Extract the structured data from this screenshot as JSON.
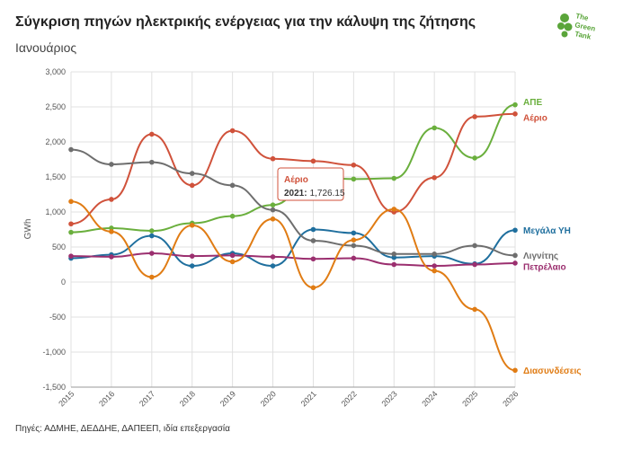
{
  "header": {
    "title": "Σύγκριση πηγών ηλεκτρικής ενέργειας για την κάλυψη της ζήτησης",
    "subtitle": "Ιανουάριος",
    "source": "Πηγές: ΑΔΜΗΕ, ΔΕΔΔΗΕ, ΔΑΠΕΕΠ, ιδία επεξεργασία"
  },
  "logo": {
    "line1": "The",
    "line2": "Green",
    "line3": "Tank",
    "color": "#5aa53a"
  },
  "tooltip": {
    "series": "Αέριο",
    "year": "2021:",
    "value": "1,726.15"
  },
  "chart_data": {
    "type": "line",
    "title": "Σύγκριση πηγών ηλεκτρικής ενέργειας για την κάλυψη της ζήτησης",
    "subtitle": "Ιανουάριος",
    "xlabel": "",
    "ylabel": "GWh",
    "ylim": [
      -1500,
      3000
    ],
    "y_ticks": [
      -1500,
      -1000,
      -500,
      0,
      500,
      1000,
      1500,
      2000,
      2500,
      3000
    ],
    "y_tick_labels": [
      "-1,500",
      "-1,000",
      "-500",
      "0",
      "500",
      "1,000",
      "1,500",
      "2,000",
      "2,500",
      "3,000"
    ],
    "x": [
      "2015",
      "2016",
      "2017",
      "2018",
      "2019",
      "2020",
      "2021",
      "2022",
      "2023",
      "2024",
      "2025",
      "2026"
    ],
    "series": [
      {
        "name": "ΑΠΕ",
        "color": "#6aaf3d",
        "values": [
          710,
          770,
          730,
          840,
          940,
          1100,
          1500,
          1470,
          1480,
          2200,
          1770,
          2530
        ]
      },
      {
        "name": "Αέριο",
        "color": "#d0523b",
        "values": [
          830,
          1180,
          2110,
          1380,
          2160,
          1760,
          1726.15,
          1670,
          1000,
          1490,
          2360,
          2400
        ]
      },
      {
        "name": "Μεγάλα ΥΗ",
        "color": "#1f6f9e",
        "values": [
          340,
          390,
          660,
          230,
          410,
          230,
          750,
          700,
          350,
          370,
          260,
          740
        ]
      },
      {
        "name": "Λιγνίτης",
        "color": "#6e6e6e",
        "values": [
          1890,
          1680,
          1710,
          1550,
          1380,
          1030,
          590,
          520,
          400,
          400,
          520,
          380
        ]
      },
      {
        "name": "Πετρέλαιο",
        "color": "#9b2f6f",
        "values": [
          370,
          360,
          410,
          370,
          380,
          360,
          330,
          340,
          250,
          230,
          250,
          270
        ]
      },
      {
        "name": "Διασυνδέσεις",
        "color": "#e07c14",
        "values": [
          1150,
          720,
          70,
          810,
          290,
          900,
          -80,
          600,
          1040,
          160,
          -390,
          -1260
        ]
      }
    ]
  }
}
